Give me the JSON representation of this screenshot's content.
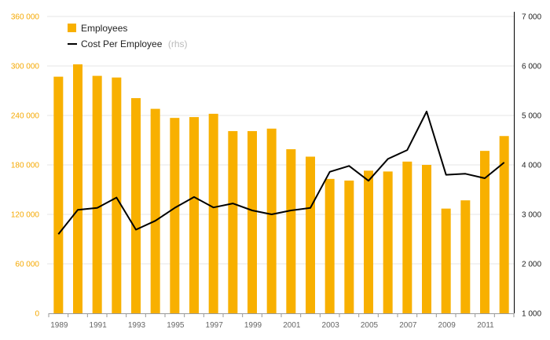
{
  "chart_data": {
    "type": "bar+line",
    "categories": [
      1989,
      1990,
      1991,
      1992,
      1993,
      1994,
      1995,
      1996,
      1997,
      1998,
      1999,
      2000,
      2001,
      2002,
      2003,
      2004,
      2005,
      2006,
      2007,
      2008,
      2009,
      2010,
      2011,
      2012
    ],
    "x_tick_labels": [
      "1989",
      "1991",
      "1993",
      "1995",
      "1997",
      "1999",
      "2001",
      "2003",
      "2005",
      "2007",
      "2009",
      "2011"
    ],
    "series": [
      {
        "name": "Employees",
        "type": "bar",
        "axis": "left",
        "color": "#f8b000",
        "values": [
          287000,
          302000,
          288000,
          286000,
          261000,
          248000,
          237000,
          238000,
          242000,
          221000,
          221000,
          224000,
          199000,
          190000,
          163000,
          161000,
          173000,
          172000,
          184000,
          180000,
          127000,
          137000,
          197000,
          215000
        ]
      },
      {
        "name": "Cost Per Employee",
        "name_suffix": "(rhs)",
        "type": "line",
        "axis": "right",
        "color": "#000000",
        "values": [
          2600,
          3090,
          3130,
          3340,
          2690,
          2870,
          3130,
          3350,
          3140,
          3220,
          3080,
          3000,
          3080,
          3130,
          3860,
          3980,
          3680,
          4120,
          4300,
          5080,
          3800,
          3820,
          3730,
          4050
        ]
      }
    ],
    "left_axis": {
      "ylim": [
        0,
        360000
      ],
      "tick_labels": [
        "0",
        "60 000",
        "120 000",
        "180 000",
        "240 000",
        "300 000",
        "360 000"
      ],
      "tick_values": [
        0,
        60000,
        120000,
        180000,
        240000,
        300000,
        360000
      ]
    },
    "right_axis": {
      "ylim": [
        1000,
        7000
      ],
      "tick_labels": [
        "1 000",
        "2 000",
        "3 000",
        "4 000",
        "5 000",
        "6 000",
        "7 000"
      ],
      "tick_values": [
        1000,
        2000,
        3000,
        4000,
        5000,
        6000,
        7000
      ]
    },
    "grid": "horizontal",
    "legend": "top-left"
  },
  "legend": {
    "employees_label": "Employees",
    "cost_label": "Cost Per Employee",
    "cost_suffix": "(rhs)"
  }
}
